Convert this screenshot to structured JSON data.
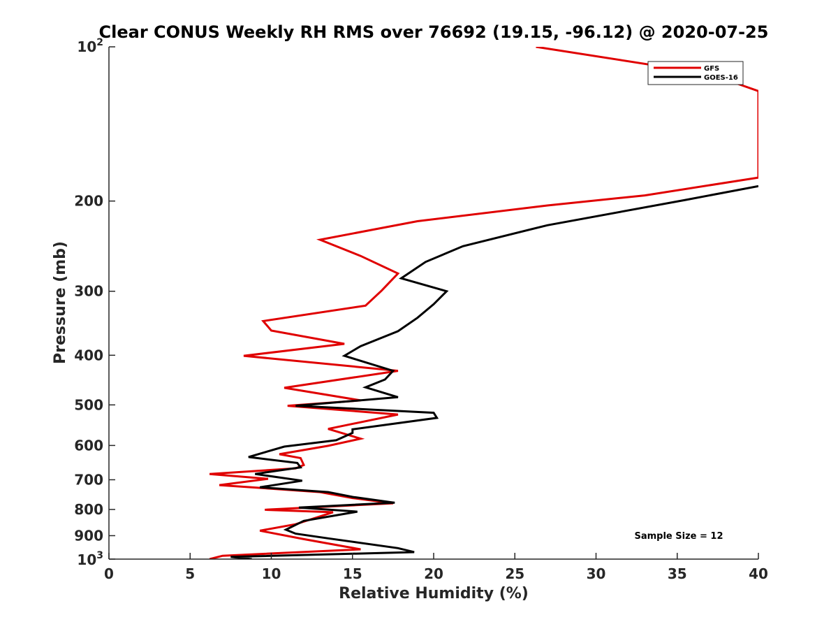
{
  "chart_data": {
    "type": "line",
    "title": "Clear CONUS Weekly RH RMS over 76692 (19.15, -96.12) @ 2020-07-25",
    "xlabel": "Relative Humidity (%)",
    "ylabel": "Pressure (mb)",
    "xlim": [
      0,
      40
    ],
    "ylim": [
      100,
      1000
    ],
    "yscale": "log",
    "yreversed": true,
    "x_ticks": [
      0,
      5,
      10,
      15,
      20,
      25,
      30,
      35,
      40
    ],
    "x_tick_labels": [
      "0",
      "5",
      "10",
      "15",
      "20",
      "25",
      "30",
      "35",
      "40"
    ],
    "y_ticks": [
      200,
      300,
      400,
      500,
      600,
      700,
      800,
      900
    ],
    "y_tick_labels": [
      "200",
      "300",
      "400",
      "500",
      "600",
      "700",
      "800",
      "900"
    ],
    "y_ends": {
      "top": {
        "value": 100,
        "base": "10",
        "exp": "2"
      },
      "bottom": {
        "value": 1000,
        "base": "10",
        "exp": "3"
      }
    },
    "legend_position": "top-right",
    "annotation": "Sample Size = 12",
    "series": [
      {
        "name": "GFS",
        "color": "#e00000",
        "points": [
          [
            26.3,
            100
          ],
          [
            37.0,
            113
          ],
          [
            40.0,
            122
          ],
          [
            40.0,
            180
          ],
          [
            33.0,
            195
          ],
          [
            27.0,
            204
          ],
          [
            19.0,
            219
          ],
          [
            13.0,
            238
          ],
          [
            15.5,
            256
          ],
          [
            17.8,
            277
          ],
          [
            16.8,
            299
          ],
          [
            15.8,
            320
          ],
          [
            9.5,
            343
          ],
          [
            10.0,
            358
          ],
          [
            14.5,
            380
          ],
          [
            8.3,
            401
          ],
          [
            17.8,
            429
          ],
          [
            10.8,
            463
          ],
          [
            15.5,
            490
          ],
          [
            11.0,
            502
          ],
          [
            17.8,
            522
          ],
          [
            13.5,
            557
          ],
          [
            15.5,
            582
          ],
          [
            13.5,
            601
          ],
          [
            10.5,
            624
          ],
          [
            11.8,
            635
          ],
          [
            12.0,
            655
          ],
          [
            11.5,
            665
          ],
          [
            6.2,
            682
          ],
          [
            9.8,
            697
          ],
          [
            6.8,
            717
          ],
          [
            13.0,
            740
          ],
          [
            15.0,
            760
          ],
          [
            17.5,
            778
          ],
          [
            9.6,
            801
          ],
          [
            13.8,
            810
          ],
          [
            11.5,
            855
          ],
          [
            9.3,
            880
          ],
          [
            12.0,
            914
          ],
          [
            15.5,
            957
          ],
          [
            7.0,
            985
          ],
          [
            6.2,
            1000
          ]
        ]
      },
      {
        "name": "GOES-16",
        "color": "#000000",
        "points": [
          [
            40.0,
            187
          ],
          [
            35.5,
            199
          ],
          [
            27.0,
            223
          ],
          [
            21.8,
            245
          ],
          [
            19.5,
            263
          ],
          [
            18.0,
            283
          ],
          [
            20.8,
            300
          ],
          [
            20.0,
            318
          ],
          [
            19.0,
            338
          ],
          [
            17.8,
            359
          ],
          [
            15.5,
            384
          ],
          [
            14.5,
            401
          ],
          [
            17.5,
            429
          ],
          [
            17.0,
            446
          ],
          [
            15.8,
            462
          ],
          [
            17.8,
            483
          ],
          [
            11.5,
            502
          ],
          [
            20.0,
            518
          ],
          [
            20.2,
            530
          ],
          [
            15.0,
            558
          ],
          [
            15.0,
            567
          ],
          [
            14.0,
            586
          ],
          [
            10.8,
            603
          ],
          [
            8.6,
            632
          ],
          [
            11.6,
            649
          ],
          [
            11.8,
            662
          ],
          [
            9.0,
            682
          ],
          [
            11.9,
            703
          ],
          [
            9.3,
            724
          ],
          [
            13.5,
            740
          ],
          [
            15.0,
            756
          ],
          [
            17.6,
            776
          ],
          [
            11.7,
            793
          ],
          [
            15.3,
            808
          ],
          [
            12.0,
            842
          ],
          [
            10.9,
            876
          ],
          [
            11.5,
            892
          ],
          [
            13.5,
            911
          ],
          [
            17.8,
            952
          ],
          [
            18.8,
            969
          ],
          [
            7.5,
            990
          ],
          [
            8.8,
            1000
          ]
        ]
      }
    ]
  }
}
